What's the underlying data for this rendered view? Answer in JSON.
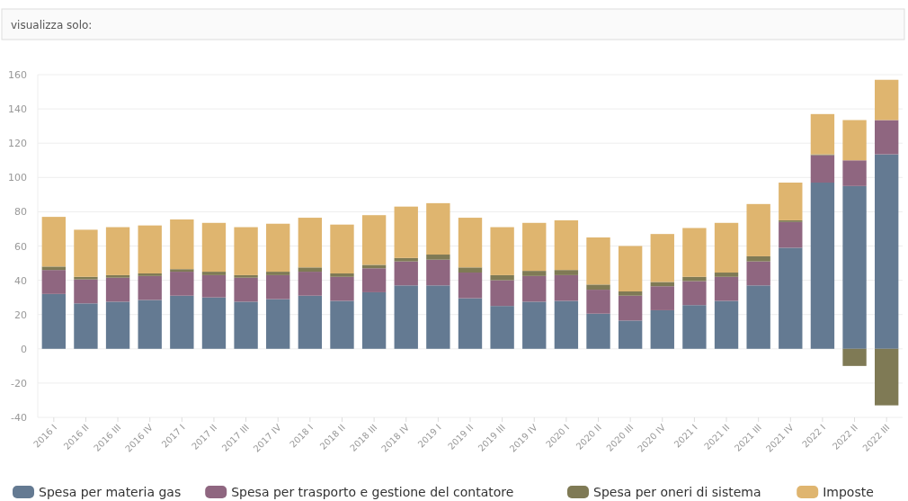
{
  "chart_data": {
    "type": "bar",
    "stacked": true,
    "annotations": [
      "visualizza solo:"
    ],
    "categories": [
      "2016 I",
      "2016 II",
      "2016 III",
      "2016 IV",
      "2017 I",
      "2017 II",
      "2017 III",
      "2017 IV",
      "2018 I",
      "2018 II",
      "2018 III",
      "2018 IV",
      "2019 I",
      "2019 II",
      "2019 III",
      "2019 IV",
      "2020 I",
      "2020 II",
      "2020 III",
      "2020 IV",
      "2021 I",
      "2021 II",
      "2021 III",
      "2021 IV",
      "2022 I",
      "2022 II",
      "2022 III"
    ],
    "series": [
      {
        "name": "Spesa per materia gas",
        "color": "#647a92",
        "values": [
          32,
          26.5,
          27.5,
          28.5,
          31,
          30,
          27.5,
          29,
          31,
          28,
          33,
          37,
          37,
          29.5,
          25,
          27.5,
          28,
          20.5,
          16.5,
          22.5,
          25.5,
          28,
          37,
          59,
          97,
          95,
          113.5
        ]
      },
      {
        "name": "Spesa per trasporto e gestione del contatore",
        "color": "#8f6680",
        "values": [
          14,
          14,
          14,
          14,
          14,
          13,
          14,
          14,
          14,
          14,
          14,
          14,
          15,
          15,
          15,
          15,
          15,
          14,
          14.5,
          14,
          14,
          14,
          14,
          15,
          16,
          15,
          20
        ]
      },
      {
        "name": "Spesa per oneri di sistema",
        "color": "#7f7a55",
        "values": [
          2,
          1.5,
          1.5,
          1.5,
          1.5,
          2,
          1.5,
          2,
          2.5,
          2,
          2,
          2,
          3,
          3,
          3,
          3,
          3,
          3,
          2.5,
          2.5,
          2.5,
          2.5,
          3,
          1,
          0.5,
          -10,
          -33
        ]
      },
      {
        "name": "Imposte",
        "color": "#dfb56f",
        "values": [
          29,
          27.5,
          28,
          28,
          29,
          28.5,
          28,
          28,
          29,
          28.5,
          29,
          30,
          30,
          29,
          28,
          28,
          29,
          27.5,
          26.5,
          28,
          28.5,
          29,
          30.5,
          22,
          23.5,
          23.5,
          23.5
        ]
      }
    ],
    "ylim": [
      -40,
      160
    ],
    "yticks": [
      -40,
      -20,
      0,
      20,
      40,
      60,
      80,
      100,
      120,
      140,
      160
    ],
    "grid": "y",
    "legend": "bottom"
  }
}
